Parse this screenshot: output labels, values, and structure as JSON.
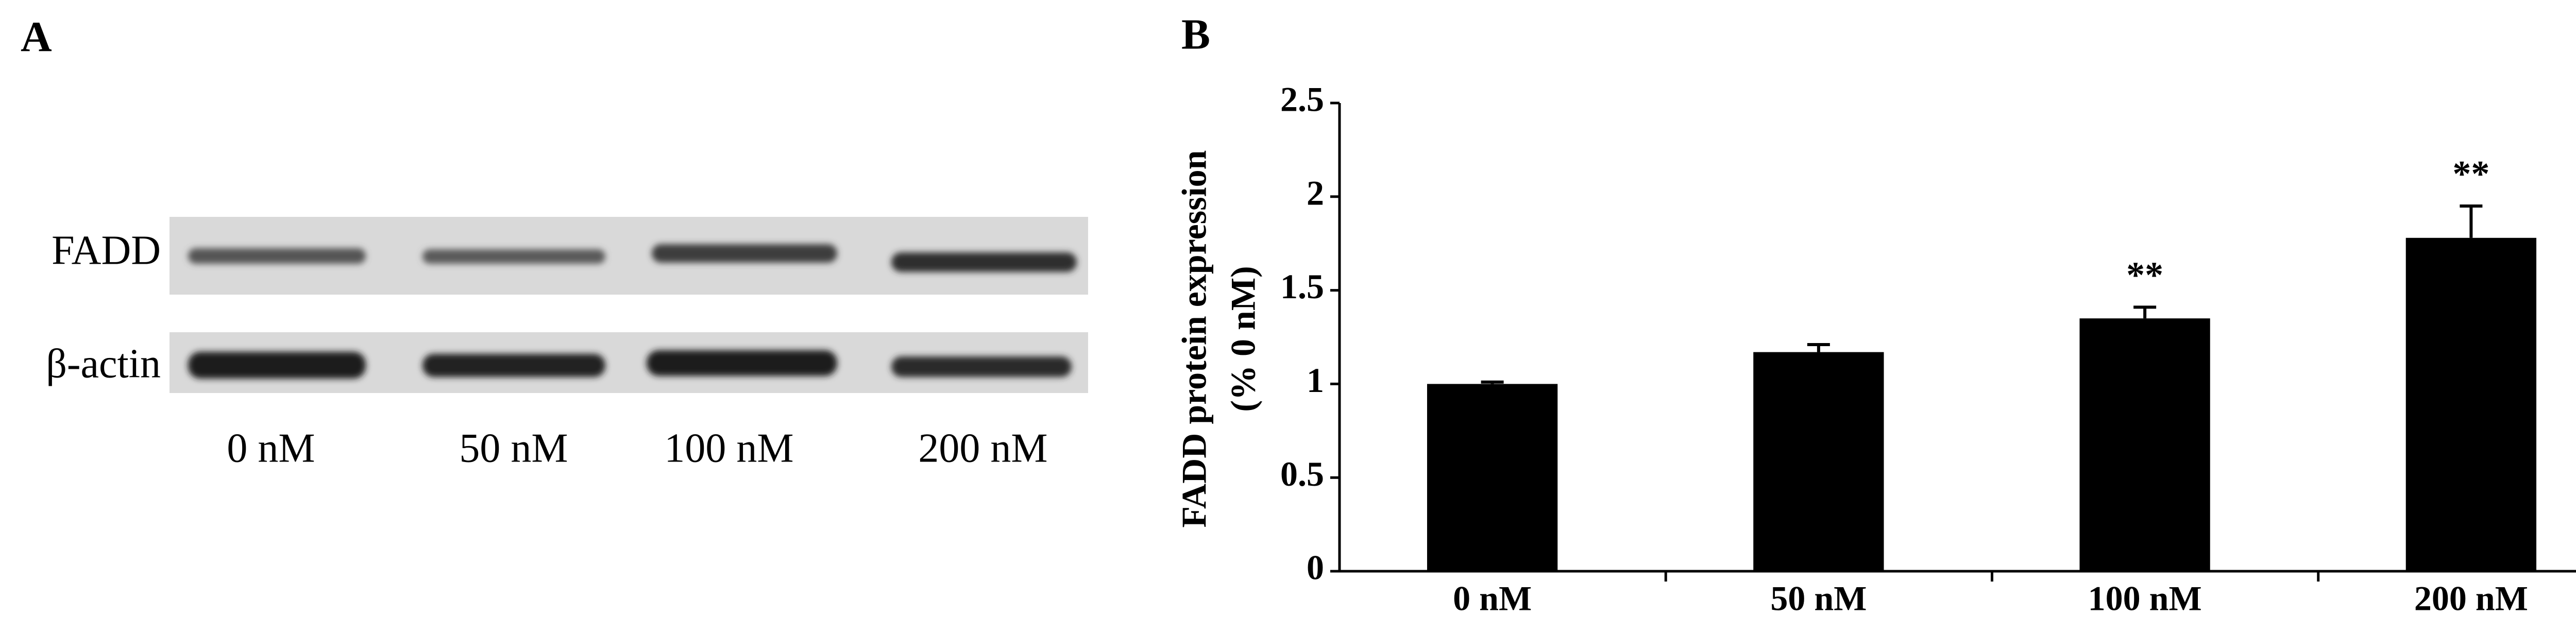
{
  "panel_a": {
    "label": "A",
    "rows": [
      "FADD",
      "β-actin"
    ],
    "lanes": [
      "0 nM",
      "50 nM",
      "100 nM",
      "200 nM"
    ]
  },
  "chart_data": {
    "type": "bar",
    "panel_label": "B",
    "ylabel": [
      "FADD protein expression",
      "(% 0  nM)"
    ],
    "categories": [
      "0 nM",
      "50 nM",
      "100 nM",
      "200 nM"
    ],
    "values": [
      1.0,
      1.17,
      1.35,
      1.78
    ],
    "errors": [
      0.01,
      0.04,
      0.06,
      0.17
    ],
    "annotations": [
      null,
      null,
      "**",
      "**"
    ],
    "color": "#000000",
    "ylim": [
      0,
      2.5
    ],
    "yticks": [
      0,
      0.5,
      1,
      1.5,
      2,
      2.5
    ]
  }
}
